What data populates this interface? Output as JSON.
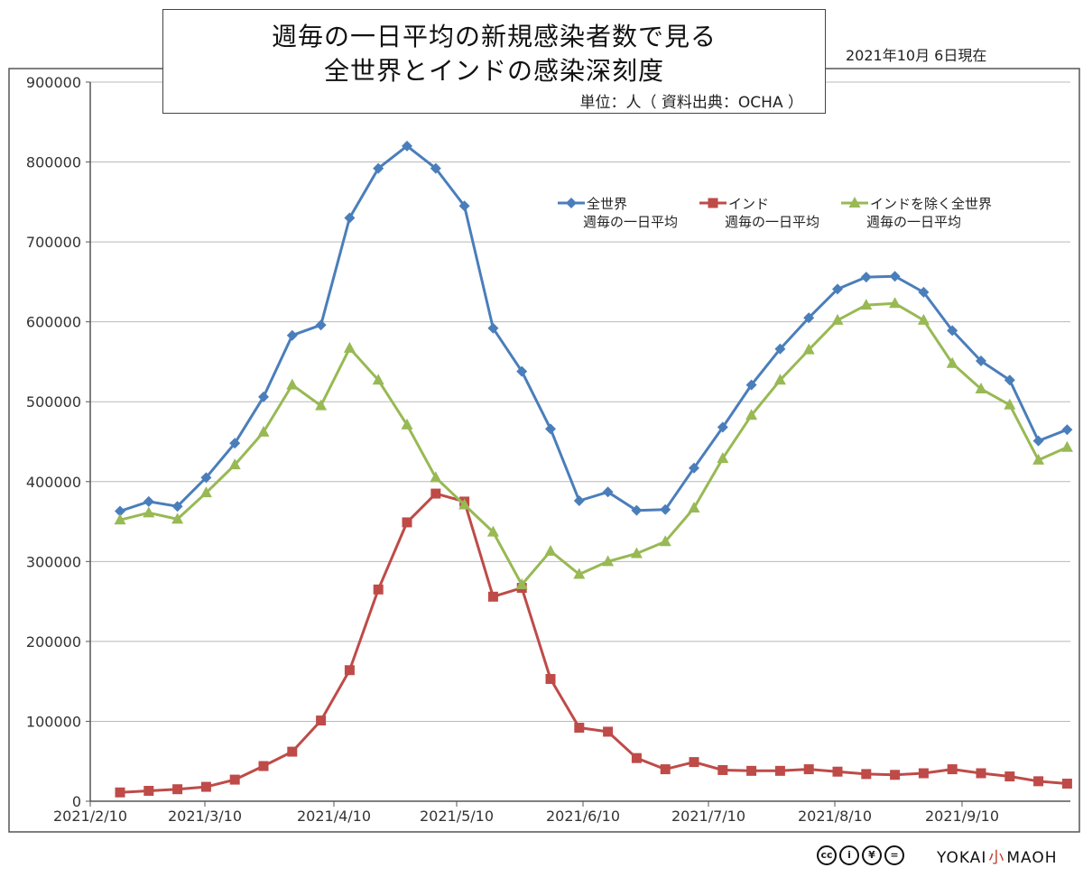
{
  "header": {
    "title_line1": "週毎の一日平均の新規感染者数で見る",
    "title_line2": "全世界とインドの感染深刻度",
    "unit_note": "単位：人（ 資料出典：OCHA ）",
    "date_note": "2021年10月  6日現在"
  },
  "footer": {
    "license": [
      "cc",
      "i",
      "¥",
      "="
    ],
    "brand_left": "YOKAI",
    "brand_mid": "小",
    "brand_right": "MAOH"
  },
  "chart_data": {
    "type": "line",
    "x_labels": [
      "2021/2/10",
      "2021/3/10",
      "2021/4/10",
      "2021/5/10",
      "2021/6/10",
      "2021/7/10",
      "2021/8/10",
      "2021/9/10"
    ],
    "ylim": [
      0,
      900000
    ],
    "y_ticks": [
      "0",
      "100000",
      "200000",
      "300000",
      "400000",
      "500000",
      "600000",
      "700000",
      "800000",
      "900000"
    ],
    "grid": "horizontal",
    "legend_position": "top-right",
    "series": [
      {
        "name": "全世界",
        "name2": "週毎の一日平均",
        "color": "#4a7ebb",
        "marker": "diamond",
        "values": [
          363000,
          375000,
          369000,
          405000,
          448000,
          506000,
          583000,
          596000,
          730000,
          792000,
          820000,
          792000,
          745000,
          592000,
          538000,
          466000,
          376000,
          387000,
          364000,
          365000,
          417000,
          468000,
          521000,
          566000,
          605000,
          641000,
          656000,
          657000,
          637000,
          589000,
          551000,
          527000,
          451000,
          465000
        ]
      },
      {
        "name": "インド",
        "name2": "週毎の一日平均",
        "color": "#be4b48",
        "marker": "square",
        "values": [
          11000,
          13000,
          15000,
          18000,
          27000,
          44000,
          62000,
          101000,
          164000,
          265000,
          349000,
          385000,
          375000,
          256000,
          267000,
          153000,
          92000,
          87000,
          54000,
          40000,
          49000,
          39000,
          38000,
          38000,
          40000,
          37000,
          34000,
          33000,
          35000,
          40000,
          35000,
          31000,
          25000,
          22000
        ]
      },
      {
        "name": "インドを除く全世界",
        "name2": "週毎の一日平均",
        "color": "#98b954",
        "marker": "triangle",
        "values": [
          352000,
          361000,
          353000,
          386000,
          421000,
          462000,
          521000,
          495000,
          567000,
          527000,
          471000,
          405000,
          371000,
          337000,
          271000,
          313000,
          284000,
          300000,
          310000,
          325000,
          367000,
          429000,
          483000,
          527000,
          565000,
          602000,
          621000,
          623000,
          602000,
          548000,
          516000,
          496000,
          427000,
          443000
        ]
      }
    ]
  }
}
